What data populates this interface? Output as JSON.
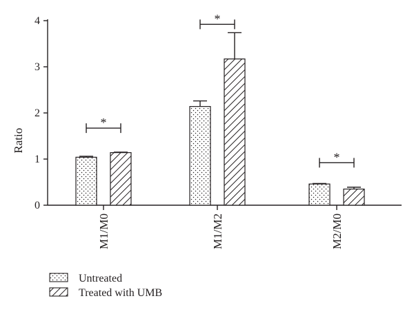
{
  "chart_data": {
    "type": "bar",
    "ylabel": "Ratio",
    "xlabel": "",
    "ylim": [
      0,
      4
    ],
    "yticks": [
      0,
      1,
      2,
      3,
      4
    ],
    "categories": [
      "M1/M0",
      "M1/M2",
      "M2/M0"
    ],
    "series": [
      {
        "name": "Untreated",
        "pattern": "dots",
        "values": [
          1.04,
          2.14,
          0.46
        ],
        "errors": [
          0.02,
          0.12,
          0.01
        ]
      },
      {
        "name": "Treated with UMB",
        "pattern": "hatch",
        "values": [
          1.14,
          3.17,
          0.35
        ],
        "errors": [
          0.01,
          0.57,
          0.04
        ]
      }
    ],
    "significance": [
      {
        "category": "M1/M0",
        "label": "*",
        "level": 1.67
      },
      {
        "category": "M1/M2",
        "label": "*",
        "level": 3.92
      },
      {
        "category": "M2/M0",
        "label": "*",
        "level": 0.92
      }
    ],
    "legend_position": "bottom-left",
    "grid": false,
    "colors": {
      "ink": "#231f20",
      "fill": "#ffffff"
    }
  }
}
